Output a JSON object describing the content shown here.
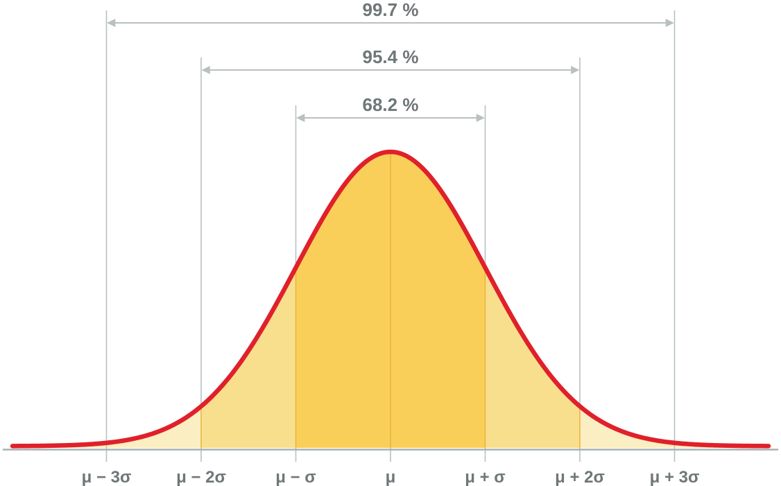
{
  "chart_data": {
    "type": "area",
    "title": "",
    "xlabel": "",
    "ylabel": "",
    "distribution": "normal",
    "mean": 0,
    "sd": 1,
    "xlim": [
      -4.0,
      4.0
    ],
    "ticks": [
      {
        "x": -3,
        "label": "μ − 3σ"
      },
      {
        "x": -2,
        "label": "μ − 2σ"
      },
      {
        "x": -1,
        "label": "μ − σ"
      },
      {
        "x": 0,
        "label": "μ"
      },
      {
        "x": 1,
        "label": "μ + σ"
      },
      {
        "x": 2,
        "label": "μ + 2σ"
      },
      {
        "x": 3,
        "label": "μ + 3σ"
      }
    ],
    "intervals": [
      {
        "from": -1,
        "to": 1,
        "label": "68.2 %"
      },
      {
        "from": -2,
        "to": 2,
        "label": "95.4 %"
      },
      {
        "from": -3,
        "to": 3,
        "label": "99.7 %"
      }
    ],
    "colors": {
      "curve": "#e0202a",
      "band_1sd": "#f9cf5a",
      "band_2sd": "#f8df8e",
      "band_3sd": "#fbeec2",
      "divider_inside": "#e8b43a",
      "gridline": "#b9c0c2",
      "axis": "#a8b0b2",
      "text": "#6f7778"
    }
  }
}
